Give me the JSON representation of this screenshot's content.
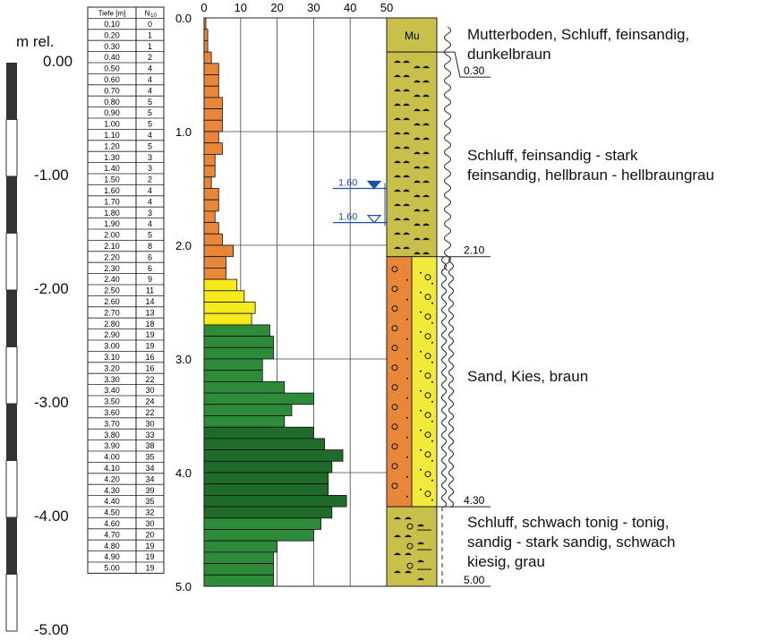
{
  "elevation_scale": {
    "title": "m rel.",
    "labels": [
      "0.00",
      "-1.00",
      "-2.00",
      "-3.00",
      "-4.00",
      "-5.00"
    ]
  },
  "table": {
    "header_depth": "Tiefe [m]",
    "header_n": "N",
    "header_n_sub": "10",
    "rows": [
      [
        "0.10",
        "0"
      ],
      [
        "0.20",
        "1"
      ],
      [
        "0.30",
        "1"
      ],
      [
        "0.40",
        "2"
      ],
      [
        "0.50",
        "4"
      ],
      [
        "0.60",
        "4"
      ],
      [
        "0.70",
        "4"
      ],
      [
        "0.80",
        "5"
      ],
      [
        "0.90",
        "5"
      ],
      [
        "1.00",
        "5"
      ],
      [
        "1.10",
        "4"
      ],
      [
        "1.20",
        "5"
      ],
      [
        "1.30",
        "3"
      ],
      [
        "1.40",
        "3"
      ],
      [
        "1.50",
        "2"
      ],
      [
        "1.60",
        "4"
      ],
      [
        "1.70",
        "4"
      ],
      [
        "1.80",
        "3"
      ],
      [
        "1.90",
        "4"
      ],
      [
        "2.00",
        "5"
      ],
      [
        "2.10",
        "8"
      ],
      [
        "2.20",
        "6"
      ],
      [
        "2.30",
        "6"
      ],
      [
        "2.40",
        "9"
      ],
      [
        "2.50",
        "11"
      ],
      [
        "2.60",
        "14"
      ],
      [
        "2.70",
        "13"
      ],
      [
        "2.80",
        "18"
      ],
      [
        "2.90",
        "19"
      ],
      [
        "3.00",
        "19"
      ],
      [
        "3.10",
        "16"
      ],
      [
        "3.20",
        "16"
      ],
      [
        "3.30",
        "22"
      ],
      [
        "3.40",
        "30"
      ],
      [
        "3.50",
        "24"
      ],
      [
        "3.60",
        "22"
      ],
      [
        "3.70",
        "30"
      ],
      [
        "3.80",
        "33"
      ],
      [
        "3.90",
        "38"
      ],
      [
        "4.00",
        "35"
      ],
      [
        "4.10",
        "34"
      ],
      [
        "4.20",
        "34"
      ],
      [
        "4.30",
        "39"
      ],
      [
        "4.40",
        "35"
      ],
      [
        "4.50",
        "32"
      ],
      [
        "4.60",
        "30"
      ],
      [
        "4.70",
        "20"
      ],
      [
        "4.80",
        "19"
      ],
      [
        "4.90",
        "19"
      ],
      [
        "5.00",
        "19"
      ]
    ]
  },
  "chart_data": {
    "type": "bar",
    "orientation": "horizontal",
    "depth_ticks": [
      "0.0",
      "1.0",
      "2.0",
      "3.0",
      "4.0",
      "5.0"
    ],
    "n_ticks": [
      "0",
      "10",
      "20",
      "30",
      "40",
      "50"
    ],
    "depth_range": [
      0,
      5
    ],
    "n_range": [
      0,
      50
    ],
    "bin_colors": [
      {
        "from_depth": 0.0,
        "to_depth": 2.3,
        "color": "#e8873a"
      },
      {
        "from_depth": 2.3,
        "to_depth": 2.7,
        "color": "#f7ea1c"
      },
      {
        "from_depth": 2.7,
        "to_depth": 3.6,
        "color": "#2e8b3a"
      },
      {
        "from_depth": 3.6,
        "to_depth": 4.4,
        "color": "#1f6b2a"
      },
      {
        "from_depth": 4.4,
        "to_depth": 5.0,
        "color": "#2e8b3a"
      }
    ],
    "water_levels": [
      "1.60",
      "1.60"
    ],
    "water_level_depths": [
      1.5,
      1.8
    ],
    "water_level_color": "#1d4fa8"
  },
  "profile": {
    "boundary_labels": [
      "0.30",
      "2.10",
      "4.30",
      "5.00"
    ],
    "boundary_depths": [
      0.3,
      2.1,
      4.3,
      5.0
    ],
    "top_symbol": "Mu",
    "layer_colors": {
      "soil": "#c8c04a",
      "sand_orange": "#e8873a",
      "sand_yellow": "#f2ea3a",
      "clay": "#c8c04a"
    }
  },
  "descriptions": [
    {
      "lines": [
        "Mutterboden, Schluff, feinsandig,",
        "dunkelbraun"
      ]
    },
    {
      "lines": [
        "Schluff, feinsandig - stark",
        "feinsandig, hellbraun - hellbraungrau"
      ]
    },
    {
      "lines": [
        "Sand, Kies, braun"
      ]
    },
    {
      "lines": [
        "Schluff, schwach tonig - tonig,",
        "sandig - stark sandig, schwach",
        "kiesig, grau"
      ]
    }
  ]
}
